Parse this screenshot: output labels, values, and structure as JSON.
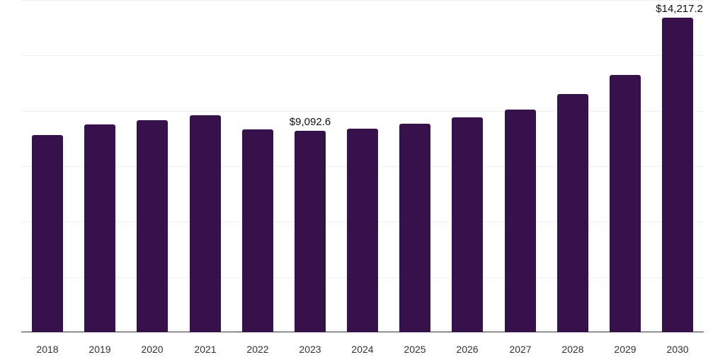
{
  "chart_data": {
    "type": "bar",
    "title": "",
    "xlabel": "",
    "ylabel": "",
    "categories": [
      "2018",
      "2019",
      "2020",
      "2021",
      "2022",
      "2023",
      "2024",
      "2025",
      "2026",
      "2027",
      "2028",
      "2029",
      "2030"
    ],
    "values": [
      8910,
      9390,
      9580,
      9810,
      9170,
      9092.6,
      9200,
      9420,
      9710,
      10060,
      10760,
      11630,
      14217.2
    ],
    "data_labels": [
      {
        "index": 5,
        "text": "$9,092.6"
      },
      {
        "index": 12,
        "text": "$14,217.2"
      }
    ],
    "ylim": [
      0,
      15000
    ],
    "gridlines": [
      0,
      2500,
      5000,
      7500,
      10000,
      12500,
      15000
    ],
    "grid": true,
    "legend": null,
    "bar_color": "#371149"
  }
}
